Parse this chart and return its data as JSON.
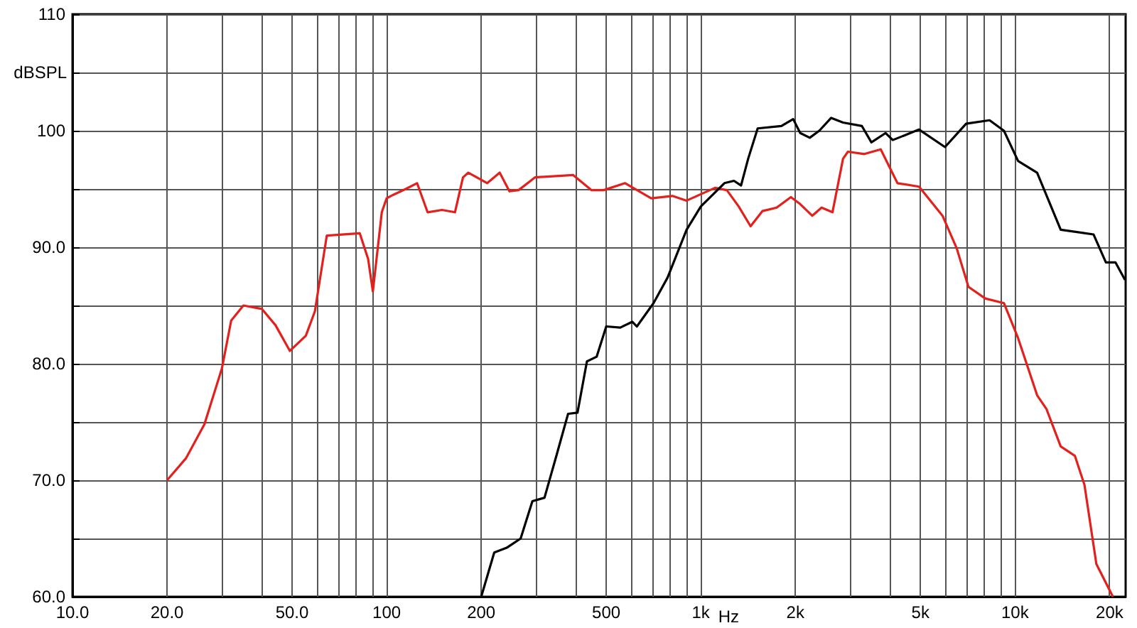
{
  "chart_data": {
    "type": "line",
    "xlabel": "Hz",
    "ylabel": "dBSPL",
    "log": "x",
    "grid": true,
    "marker": "none",
    "line_style": "solid",
    "xlim": [
      10,
      22500
    ],
    "ylim": [
      60,
      110
    ],
    "xticks": [
      {
        "value": 10,
        "label": "10.0"
      },
      {
        "value": 20,
        "label": "20.0"
      },
      {
        "value": 30,
        "label": null
      },
      {
        "value": 40,
        "label": null
      },
      {
        "value": 50,
        "label": "50.0"
      },
      {
        "value": 60,
        "label": null
      },
      {
        "value": 70,
        "label": null
      },
      {
        "value": 80,
        "label": null
      },
      {
        "value": 90,
        "label": null
      },
      100,
      200,
      {
        "value": 300,
        "label": null
      },
      {
        "value": 400,
        "label": null
      },
      500,
      {
        "value": 600,
        "label": null
      },
      {
        "value": 700,
        "label": null
      },
      {
        "value": 800,
        "label": null
      },
      {
        "value": 900,
        "label": null
      },
      {
        "value": 1000,
        "label": "1k"
      },
      {
        "value": 2000,
        "label": "2k"
      },
      {
        "value": 3000,
        "label": null
      },
      {
        "value": 4000,
        "label": null
      },
      {
        "value": 5000,
        "label": "5k"
      },
      {
        "value": 6000,
        "label": null
      },
      {
        "value": 7000,
        "label": null
      },
      {
        "value": 8000,
        "label": null
      },
      {
        "value": 9000,
        "label": null
      },
      {
        "value": 10000,
        "label": "10k"
      },
      {
        "value": 20000,
        "label": "20k"
      }
    ],
    "yticks": [
      {
        "value": 60,
        "label": "60.0"
      },
      {
        "value": 65,
        "label": null
      },
      {
        "value": 70,
        "label": "70.0"
      },
      {
        "value": 75,
        "label": null
      },
      {
        "value": 80,
        "label": "80.0"
      },
      {
        "value": 85,
        "label": null
      },
      {
        "value": 90,
        "label": "90.0"
      },
      {
        "value": 95,
        "label": null
      },
      100,
      {
        "value": 105,
        "label": null
      },
      110
    ],
    "series": [
      {
        "color": "#e3201b",
        "x": [
          20,
          23,
          26.3,
          29.9,
          32,
          35,
          40.1,
          44.3,
          49.2,
          55.3,
          59.1,
          64.5,
          82.1,
          87.3,
          90.4,
          96.5,
          100,
          105,
          115,
          125,
          135,
          150,
          165,
          175,
          182,
          209,
          229,
          246,
          263,
          297,
          392,
          449,
          491,
          574,
          695,
          812,
          901,
          1110,
          1210,
          1320,
          1440,
          1570,
          1743,
          1935,
          2072,
          2262,
          2423,
          2625,
          2836,
          2940,
          3315,
          3738,
          4226,
          4951,
          5880,
          6525,
          7110,
          8040,
          9220,
          10230,
          11760,
          12600,
          13980,
          15510,
          16640,
          18160,
          20500
        ],
        "values": [
          70,
          71.9,
          74.8,
          79.6,
          83.7,
          85,
          84.7,
          83.3,
          81.1,
          82.4,
          84.5,
          91,
          91.2,
          89,
          86.2,
          93,
          94.2,
          94.5,
          95,
          95.5,
          93,
          93.2,
          93,
          96,
          96.4,
          95.5,
          96.4,
          94.8,
          94.9,
          96,
          96.2,
          94.9,
          94.9,
          95.5,
          94.2,
          94.4,
          94,
          95.1,
          94.9,
          93.5,
          91.8,
          93.1,
          93.4,
          94.3,
          93.7,
          92.7,
          93.4,
          93,
          97.6,
          98.2,
          98,
          98.4,
          95.5,
          95.2,
          92.7,
          89.9,
          86.6,
          85.6,
          85.2,
          82.2,
          77.3,
          76.1,
          72.9,
          72.1,
          69.6,
          62.8,
          60
        ]
      },
      {
        "color": "#000000",
        "x": [
          200,
          220,
          241,
          267,
          291,
          318,
          347,
          378,
          405,
          434,
          466,
          500,
          554,
          605,
          626,
          707,
          784,
          901,
          1000,
          1189,
          1275,
          1343,
          1415,
          1517,
          1805,
          1968,
          2072,
          2222,
          2383,
          2600,
          2836,
          3257,
          3491,
          3875,
          4083,
          4951,
          5987,
          6990,
          8300,
          9220,
          10230,
          11760,
          13980,
          17780,
          19470,
          20880,
          22400
        ],
        "values": [
          60,
          63.8,
          64.2,
          65,
          68.2,
          68.5,
          72.1,
          75.7,
          75.8,
          80.2,
          80.6,
          83.2,
          83.1,
          83.6,
          83.2,
          85.2,
          87.4,
          91.5,
          93.5,
          95.5,
          95.7,
          95.3,
          97.6,
          100.2,
          100.4,
          101,
          99.8,
          99.4,
          100,
          101.1,
          100.7,
          100.4,
          99,
          99.8,
          99.2,
          100.1,
          98.6,
          100.6,
          100.9,
          100,
          97.4,
          96.4,
          91.5,
          91.1,
          88.7,
          88.7,
          87.2
        ]
      }
    ]
  }
}
